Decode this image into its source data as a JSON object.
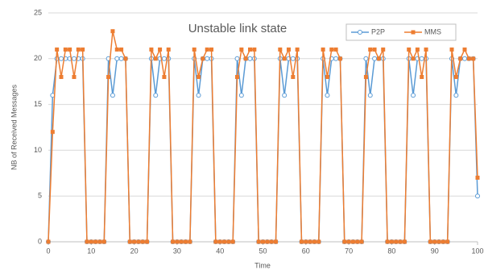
{
  "chart_data": {
    "type": "line",
    "title": "Unstable link state",
    "x_label": "Time",
    "y_label": "NB of Received Messages",
    "x": [
      0,
      1,
      2,
      3,
      4,
      5,
      6,
      7,
      8,
      9,
      10,
      11,
      12,
      13,
      14,
      15,
      16,
      17,
      18,
      19,
      20,
      21,
      22,
      23,
      24,
      25,
      26,
      27,
      28,
      29,
      30,
      31,
      32,
      33,
      34,
      35,
      36,
      37,
      38,
      39,
      40,
      41,
      42,
      43,
      44,
      45,
      46,
      47,
      48,
      49,
      50,
      51,
      52,
      53,
      54,
      55,
      56,
      57,
      58,
      59,
      60,
      61,
      62,
      63,
      64,
      65,
      66,
      67,
      68,
      69,
      70,
      71,
      72,
      73,
      74,
      75,
      76,
      77,
      78,
      79,
      80,
      81,
      82,
      83,
      84,
      85,
      86,
      87,
      88,
      89,
      90,
      91,
      92,
      93,
      94,
      95,
      96,
      97,
      98,
      99,
      100
    ],
    "series": [
      {
        "name": "P2P",
        "color": "#5b9bd5",
        "marker": "circle",
        "values": [
          0,
          16,
          20,
          20,
          20,
          20,
          20,
          20,
          20,
          0,
          0,
          0,
          0,
          0,
          20,
          16,
          20,
          20,
          20,
          0,
          0,
          0,
          0,
          0,
          20,
          16,
          20,
          20,
          20,
          0,
          0,
          0,
          0,
          0,
          20,
          16,
          20,
          20,
          20,
          0,
          0,
          0,
          0,
          0,
          20,
          16,
          20,
          20,
          20,
          0,
          0,
          0,
          0,
          0,
          20,
          16,
          20,
          20,
          20,
          0,
          0,
          0,
          0,
          0,
          20,
          16,
          20,
          20,
          20,
          0,
          0,
          0,
          0,
          0,
          20,
          16,
          20,
          20,
          20,
          0,
          0,
          0,
          0,
          0,
          20,
          16,
          20,
          20,
          20,
          0,
          0,
          0,
          0,
          0,
          20,
          16,
          20,
          20,
          20,
          20,
          5
        ]
      },
      {
        "name": "MMS",
        "color": "#ed7d31",
        "marker": "square",
        "values": [
          0,
          12,
          21,
          18,
          21,
          21,
          18,
          21,
          21,
          0,
          0,
          0,
          0,
          0,
          18,
          23,
          21,
          21,
          20,
          0,
          0,
          0,
          0,
          0,
          21,
          20,
          21,
          18,
          21,
          0,
          0,
          0,
          0,
          0,
          21,
          18,
          20,
          21,
          21,
          0,
          0,
          0,
          0,
          0,
          18,
          21,
          20,
          21,
          21,
          0,
          0,
          0,
          0,
          0,
          21,
          20,
          21,
          18,
          21,
          0,
          0,
          0,
          0,
          0,
          21,
          18,
          21,
          21,
          20,
          0,
          0,
          0,
          0,
          0,
          18,
          21,
          21,
          20,
          21,
          0,
          0,
          0,
          0,
          0,
          21,
          20,
          21,
          18,
          21,
          0,
          0,
          0,
          0,
          0,
          21,
          18,
          20,
          21,
          20,
          20,
          7
        ]
      }
    ],
    "xlim": [
      0,
      100
    ],
    "xticks": [
      0,
      10,
      20,
      30,
      40,
      50,
      60,
      70,
      80,
      90,
      100
    ],
    "ylim": [
      0,
      25
    ],
    "yticks": [
      0,
      5,
      10,
      15,
      20,
      25
    ],
    "grid": true,
    "legend": "top-right"
  }
}
